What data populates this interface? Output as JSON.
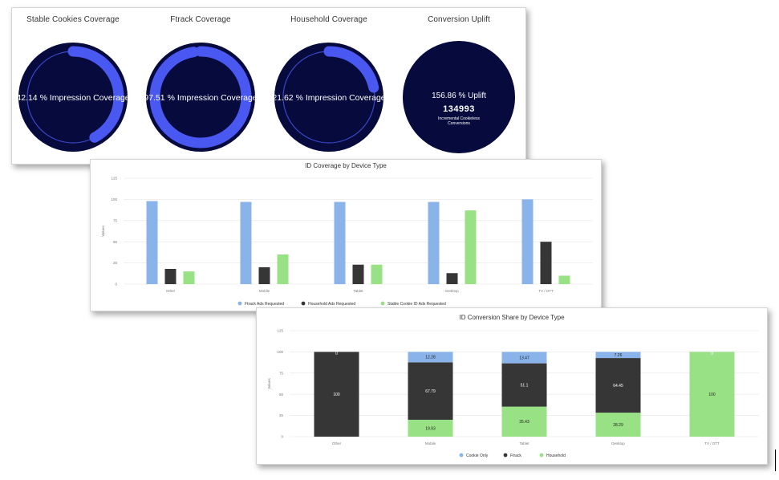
{
  "colors": {
    "ring_bg": "#070a3c",
    "ring_fg": "#4a58f2",
    "blue": "#8ab3ea",
    "dark": "#363636",
    "green": "#98e184"
  },
  "kpis": [
    {
      "title": "Stable Cookies Coverage",
      "value": "42.14 % Impression Coverage",
      "percent": 42.14
    },
    {
      "title": "Ftrack Coverage",
      "value": "97.51 % Impression Coverage",
      "percent": 97.51
    },
    {
      "title": "Household Coverage",
      "value": "21.62 % Impression Coverage",
      "percent": 21.62
    }
  ],
  "uplift": {
    "title": "Conversion Uplift",
    "percent_text": "156.86 % Uplift",
    "count": "134993",
    "label_line1": "Incremental Cookieless",
    "label_line2": "Conversions"
  },
  "chart_data": [
    {
      "type": "bar",
      "title": "ID Coverage by Device Type",
      "categories": [
        "Other",
        "Mobile",
        "Tablet",
        "Desktop",
        "TV / OTT"
      ],
      "series": [
        {
          "name": "Ftrack Ads Requested",
          "values": [
            98,
            97,
            97,
            97,
            100
          ]
        },
        {
          "name": "Household Ads Requested",
          "values": [
            18,
            20,
            23,
            13,
            50
          ]
        },
        {
          "name": "Stable Cookie ID Ads Requested",
          "values": [
            15,
            35,
            23,
            87,
            10
          ]
        }
      ],
      "ylabel": "Values",
      "ylim": [
        0,
        125
      ],
      "yticks": [
        "0",
        "25",
        "50",
        "75",
        "100",
        "125"
      ]
    },
    {
      "type": "stacked-bar",
      "title": "ID Conversion Share by Device Type",
      "categories": [
        "Other",
        "Mobile",
        "Tablet",
        "Desktop",
        "TV / OTT"
      ],
      "series": [
        {
          "name": "Household",
          "values": [
            0,
            19.93,
            35.43,
            28.29,
            100
          ],
          "labels": [
            "0",
            "19.93",
            "35.43",
            "28.29",
            "100"
          ]
        },
        {
          "name": "Ftrack",
          "values": [
            100,
            67.79,
            51.1,
            64.45,
            0
          ],
          "labels": [
            "100",
            "67.79",
            "51.1",
            "64.45",
            "0"
          ]
        },
        {
          "name": "Cookie Only",
          "values": [
            0,
            12.28,
            13.47,
            7.26,
            0
          ],
          "labels": [
            "0",
            "12.28",
            "13.47",
            "7.26",
            ""
          ]
        }
      ],
      "legend": [
        "Cookie Only",
        "Ftrack",
        "Household"
      ],
      "ylabel": "Values",
      "ylim": [
        0,
        125
      ],
      "yticks": [
        "0",
        "25",
        "50",
        "75",
        "100",
        "125"
      ]
    }
  ]
}
